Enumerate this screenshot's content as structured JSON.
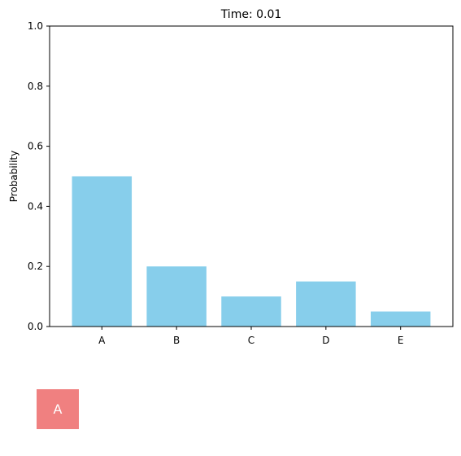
{
  "chart_data": {
    "type": "bar",
    "title": "Time: 0.01",
    "xlabel": "",
    "ylabel": "Probability",
    "categories": [
      "A",
      "B",
      "C",
      "D",
      "E"
    ],
    "values": [
      0.5,
      0.2,
      0.1,
      0.15,
      0.05
    ],
    "ylim": [
      0,
      1
    ],
    "yticks": [
      0.0,
      0.2,
      0.4,
      0.6,
      0.8,
      1.0
    ],
    "ytick_labels": [
      "0.0",
      "0.2",
      "0.4",
      "0.6",
      "0.8",
      "1.0"
    ],
    "bar_color": "#87ceeb",
    "grid": false,
    "legend": "none"
  },
  "state_indicator": {
    "label": "A",
    "color": "#f08080"
  }
}
